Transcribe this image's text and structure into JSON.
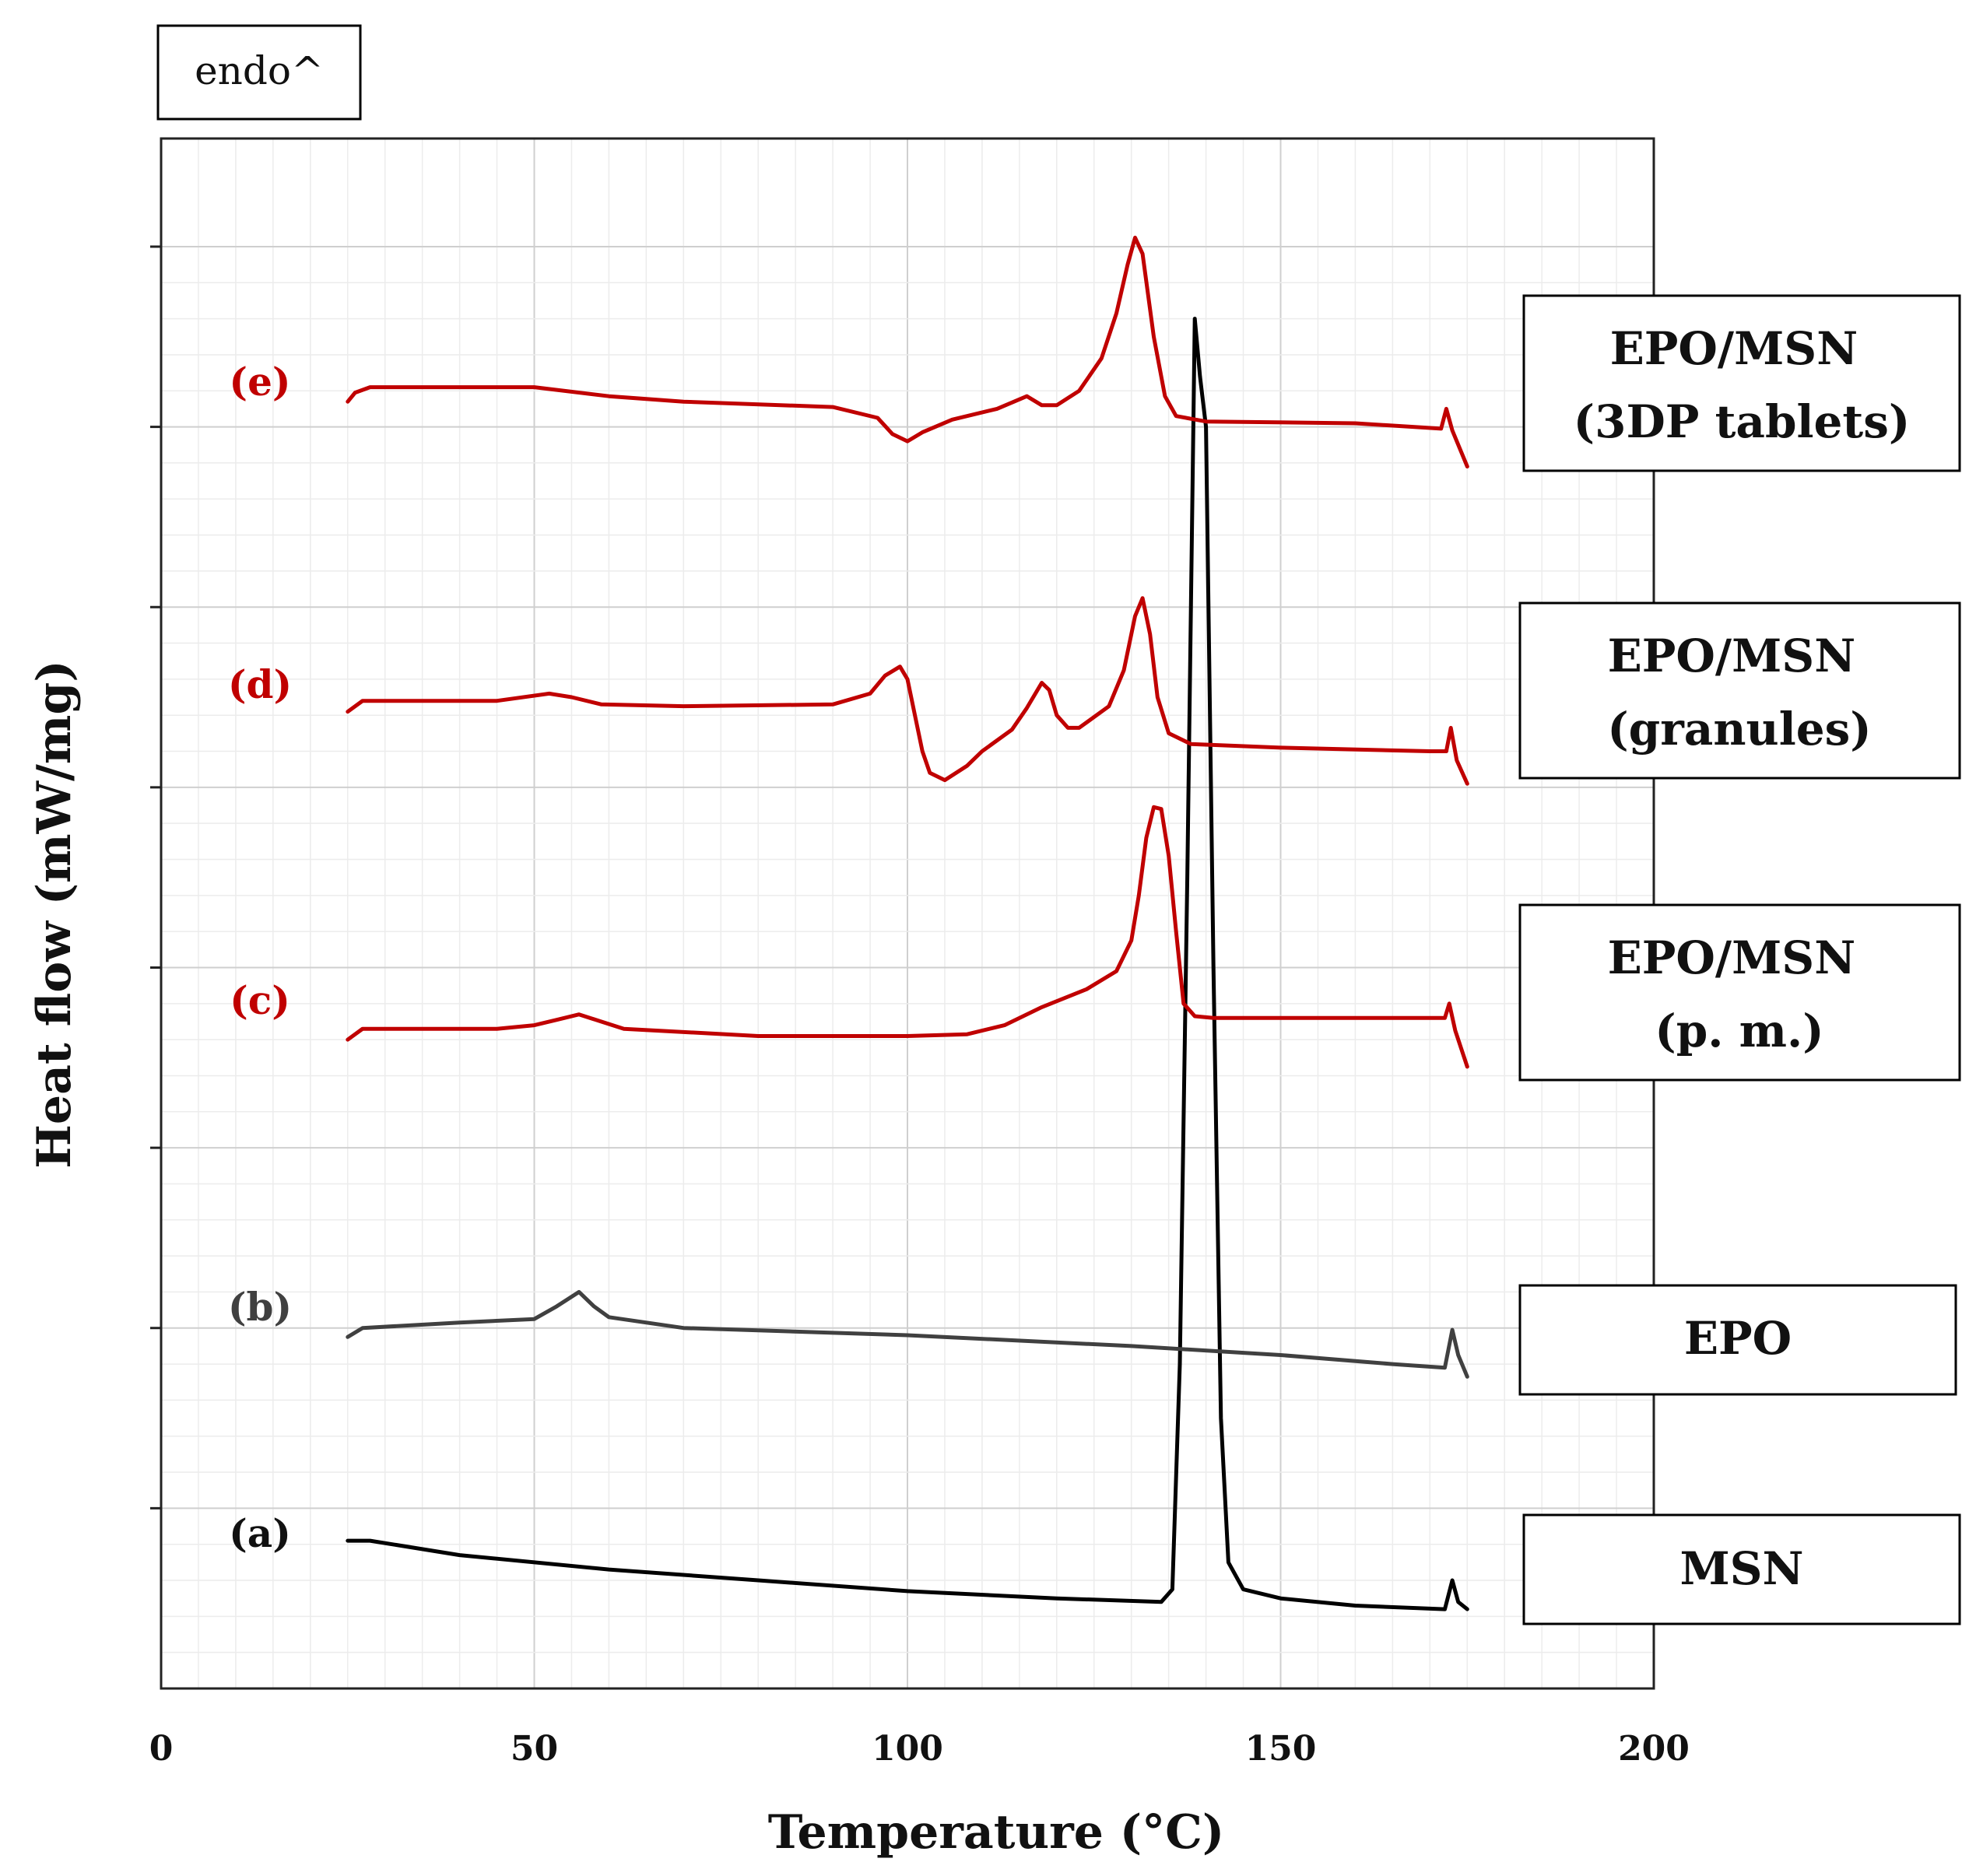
{
  "chart_data": {
    "type": "line",
    "title": "",
    "annotation": "endo^",
    "xlabel": "Temperature (°C)",
    "ylabel": "Heat flow (mW/mg)",
    "xlim": [
      0,
      200
    ],
    "ylim": [
      0,
      8.6
    ],
    "xticks": [
      "0",
      "50",
      "100",
      "150",
      "200"
    ],
    "y_tick_count": 8,
    "y_units": "arbitrary (stacked offset)",
    "grid": true,
    "colors": {
      "red": "#c00000",
      "gray": "#404040",
      "black": "#000000"
    },
    "series": [
      {
        "letter": "(a)",
        "label": "MSN",
        "color": "#000000",
        "points": [
          [
            25,
            0.82
          ],
          [
            28,
            0.82
          ],
          [
            40,
            0.74
          ],
          [
            60,
            0.66
          ],
          [
            80,
            0.6
          ],
          [
            100,
            0.54
          ],
          [
            120,
            0.5
          ],
          [
            134,
            0.48
          ],
          [
            135.5,
            0.55
          ],
          [
            136.5,
            1.8
          ],
          [
            137.5,
            4.5
          ],
          [
            138.5,
            7.6
          ],
          [
            139.2,
            7.28
          ],
          [
            140,
            7.0
          ],
          [
            141,
            4.0
          ],
          [
            142,
            1.5
          ],
          [
            143,
            0.7
          ],
          [
            145,
            0.55
          ],
          [
            150,
            0.5
          ],
          [
            160,
            0.46
          ],
          [
            172,
            0.44
          ],
          [
            173,
            0.6
          ],
          [
            173.8,
            0.48
          ],
          [
            175,
            0.44
          ]
        ]
      },
      {
        "letter": "(b)",
        "label": "EPO",
        "color": "#404040",
        "points": [
          [
            25,
            1.95
          ],
          [
            27,
            2.0
          ],
          [
            40,
            2.03
          ],
          [
            50,
            2.05
          ],
          [
            53,
            2.12
          ],
          [
            56,
            2.2
          ],
          [
            58,
            2.12
          ],
          [
            60,
            2.06
          ],
          [
            70,
            2.0
          ],
          [
            100,
            1.96
          ],
          [
            130,
            1.9
          ],
          [
            150,
            1.85
          ],
          [
            165,
            1.8
          ],
          [
            172,
            1.78
          ],
          [
            173,
            1.99
          ],
          [
            173.8,
            1.85
          ],
          [
            175,
            1.73
          ]
        ]
      },
      {
        "letter": "(c)",
        "label": "EPO/MSN\n(p. m.)",
        "color": "#c00000",
        "points": [
          [
            25,
            3.6
          ],
          [
            27,
            3.66
          ],
          [
            45,
            3.66
          ],
          [
            50,
            3.68
          ],
          [
            53,
            3.71
          ],
          [
            56,
            3.74
          ],
          [
            59,
            3.7
          ],
          [
            62,
            3.66
          ],
          [
            80,
            3.62
          ],
          [
            100,
            3.62
          ],
          [
            108,
            3.63
          ],
          [
            113,
            3.68
          ],
          [
            118,
            3.78
          ],
          [
            124,
            3.88
          ],
          [
            128,
            3.98
          ],
          [
            130,
            4.15
          ],
          [
            131,
            4.4
          ],
          [
            132,
            4.72
          ],
          [
            133,
            4.89
          ],
          [
            134,
            4.88
          ],
          [
            135,
            4.62
          ],
          [
            136,
            4.2
          ],
          [
            137,
            3.8
          ],
          [
            138.5,
            3.73
          ],
          [
            141,
            3.72
          ],
          [
            160,
            3.72
          ],
          [
            172,
            3.72
          ],
          [
            172.6,
            3.8
          ],
          [
            173.4,
            3.65
          ],
          [
            175,
            3.45
          ]
        ]
      },
      {
        "letter": "(d)",
        "label": "EPO/MSN\n(granules)",
        "color": "#c00000",
        "points": [
          [
            25,
            5.42
          ],
          [
            27,
            5.48
          ],
          [
            45,
            5.48
          ],
          [
            52,
            5.52
          ],
          [
            55,
            5.5
          ],
          [
            59,
            5.46
          ],
          [
            70,
            5.45
          ],
          [
            90,
            5.46
          ],
          [
            95,
            5.52
          ],
          [
            97,
            5.62
          ],
          [
            99,
            5.67
          ],
          [
            100,
            5.6
          ],
          [
            101,
            5.4
          ],
          [
            102,
            5.2
          ],
          [
            103,
            5.08
          ],
          [
            105,
            5.04
          ],
          [
            108,
            5.12
          ],
          [
            110,
            5.2
          ],
          [
            114,
            5.32
          ],
          [
            116,
            5.44
          ],
          [
            118,
            5.58
          ],
          [
            119,
            5.54
          ],
          [
            120,
            5.4
          ],
          [
            121.5,
            5.33
          ],
          [
            123,
            5.33
          ],
          [
            127,
            5.45
          ],
          [
            129,
            5.65
          ],
          [
            130.5,
            5.95
          ],
          [
            131.5,
            6.05
          ],
          [
            132.5,
            5.85
          ],
          [
            133.5,
            5.5
          ],
          [
            135,
            5.3
          ],
          [
            138,
            5.24
          ],
          [
            150,
            5.22
          ],
          [
            170,
            5.2
          ],
          [
            172.2,
            5.2
          ],
          [
            172.8,
            5.33
          ],
          [
            173.6,
            5.15
          ],
          [
            175,
            5.02
          ]
        ]
      },
      {
        "letter": "(e)",
        "label": "EPO/MSN\n(3DP tablets)",
        "color": "#c00000",
        "points": [
          [
            25,
            7.14
          ],
          [
            26,
            7.19
          ],
          [
            28,
            7.22
          ],
          [
            50,
            7.22
          ],
          [
            60,
            7.17
          ],
          [
            70,
            7.14
          ],
          [
            90,
            7.11
          ],
          [
            96,
            7.05
          ],
          [
            98,
            6.96
          ],
          [
            100,
            6.92
          ],
          [
            102,
            6.97
          ],
          [
            106,
            7.04
          ],
          [
            112,
            7.1
          ],
          [
            116,
            7.17
          ],
          [
            118,
            7.12
          ],
          [
            120,
            7.12
          ],
          [
            123,
            7.2
          ],
          [
            126,
            7.38
          ],
          [
            128,
            7.63
          ],
          [
            129.5,
            7.9
          ],
          [
            130.5,
            8.05
          ],
          [
            131.5,
            7.96
          ],
          [
            133,
            7.5
          ],
          [
            134.5,
            7.17
          ],
          [
            136,
            7.06
          ],
          [
            140,
            7.03
          ],
          [
            160,
            7.02
          ],
          [
            171.5,
            6.99
          ],
          [
            172.2,
            7.1
          ],
          [
            173,
            6.98
          ],
          [
            175,
            6.78
          ]
        ]
      }
    ]
  }
}
